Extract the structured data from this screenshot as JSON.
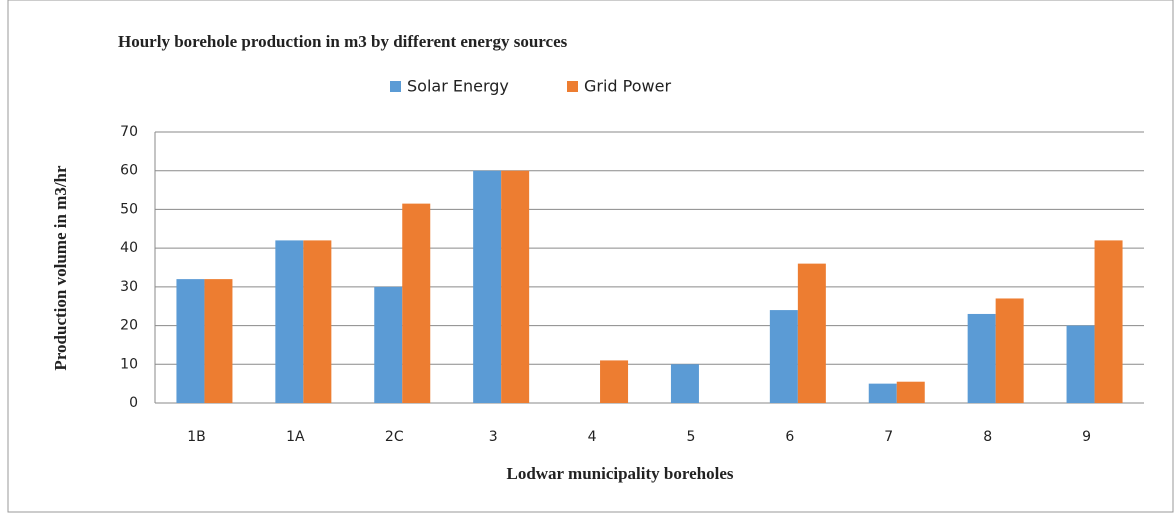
{
  "chart_data": {
    "type": "bar",
    "title": "Hourly borehole production in m3 by different energy sources",
    "x_label": "Lodwar municipality boreholes",
    "y_label": "Production volume in m3/hr",
    "categories": [
      "1B",
      "1A",
      "2C",
      "3",
      "4",
      "5",
      "6",
      "7",
      "8",
      "9"
    ],
    "series": [
      {
        "name": "Solar Energy",
        "color": "#5b9bd5",
        "values": [
          32,
          42,
          30,
          60,
          0,
          10,
          24,
          5,
          23,
          20
        ]
      },
      {
        "name": "Grid Power",
        "color": "#ed7d31",
        "values": [
          32,
          42,
          51.5,
          60,
          11,
          0,
          36,
          5.5,
          27,
          42
        ]
      }
    ],
    "ylim": [
      0,
      70
    ],
    "yticks": [
      0,
      10,
      20,
      30,
      40,
      50,
      60,
      70
    ],
    "grid": true,
    "legend": "top"
  }
}
